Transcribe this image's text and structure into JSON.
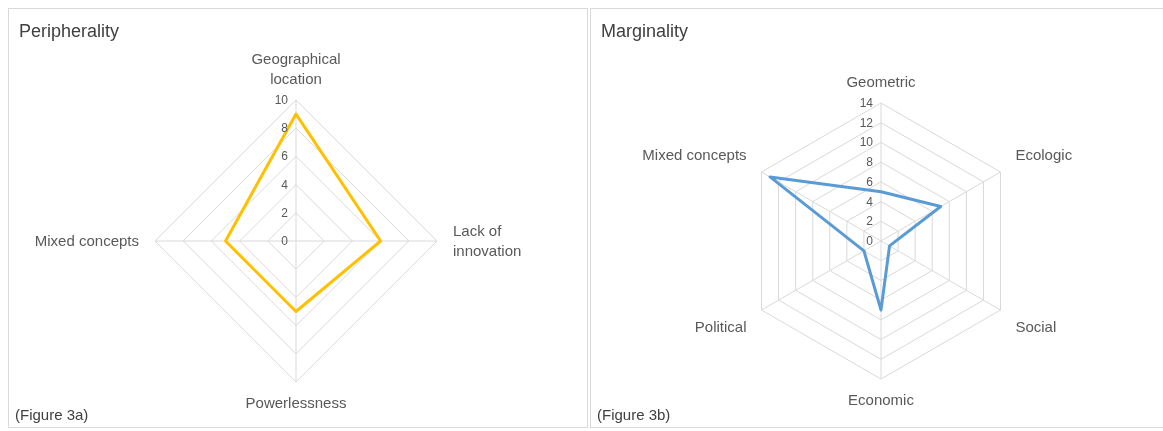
{
  "chart_data": [
    {
      "type": "radar",
      "title": "Peripherality",
      "categories": [
        "Geographical location",
        "Lack of innovation",
        "Powerlessness",
        "Mixed concepts"
      ],
      "series": [
        {
          "color": "#ffc000",
          "values": [
            9,
            6,
            5,
            5
          ]
        }
      ],
      "ylim": [
        0,
        10
      ],
      "yticks": [
        0,
        2,
        4,
        6,
        8,
        10
      ],
      "grid": true,
      "legend": false,
      "marker": "none",
      "annotations": [
        "(Figure 3a)"
      ]
    },
    {
      "type": "radar",
      "title": "Marginality",
      "categories": [
        "Geometric",
        "Ecologic",
        "Social",
        "Economic",
        "Political",
        "Mixed concepts"
      ],
      "series": [
        {
          "color": "#5b9bd5",
          "values": [
            5,
            7,
            1,
            7,
            2,
            13
          ]
        }
      ],
      "ylim": [
        0,
        14
      ],
      "yticks": [
        0,
        2,
        4,
        6,
        8,
        10,
        12,
        14
      ],
      "grid": true,
      "legend": false,
      "marker": "none",
      "annotations": [
        "(Figure 3b)"
      ]
    }
  ]
}
